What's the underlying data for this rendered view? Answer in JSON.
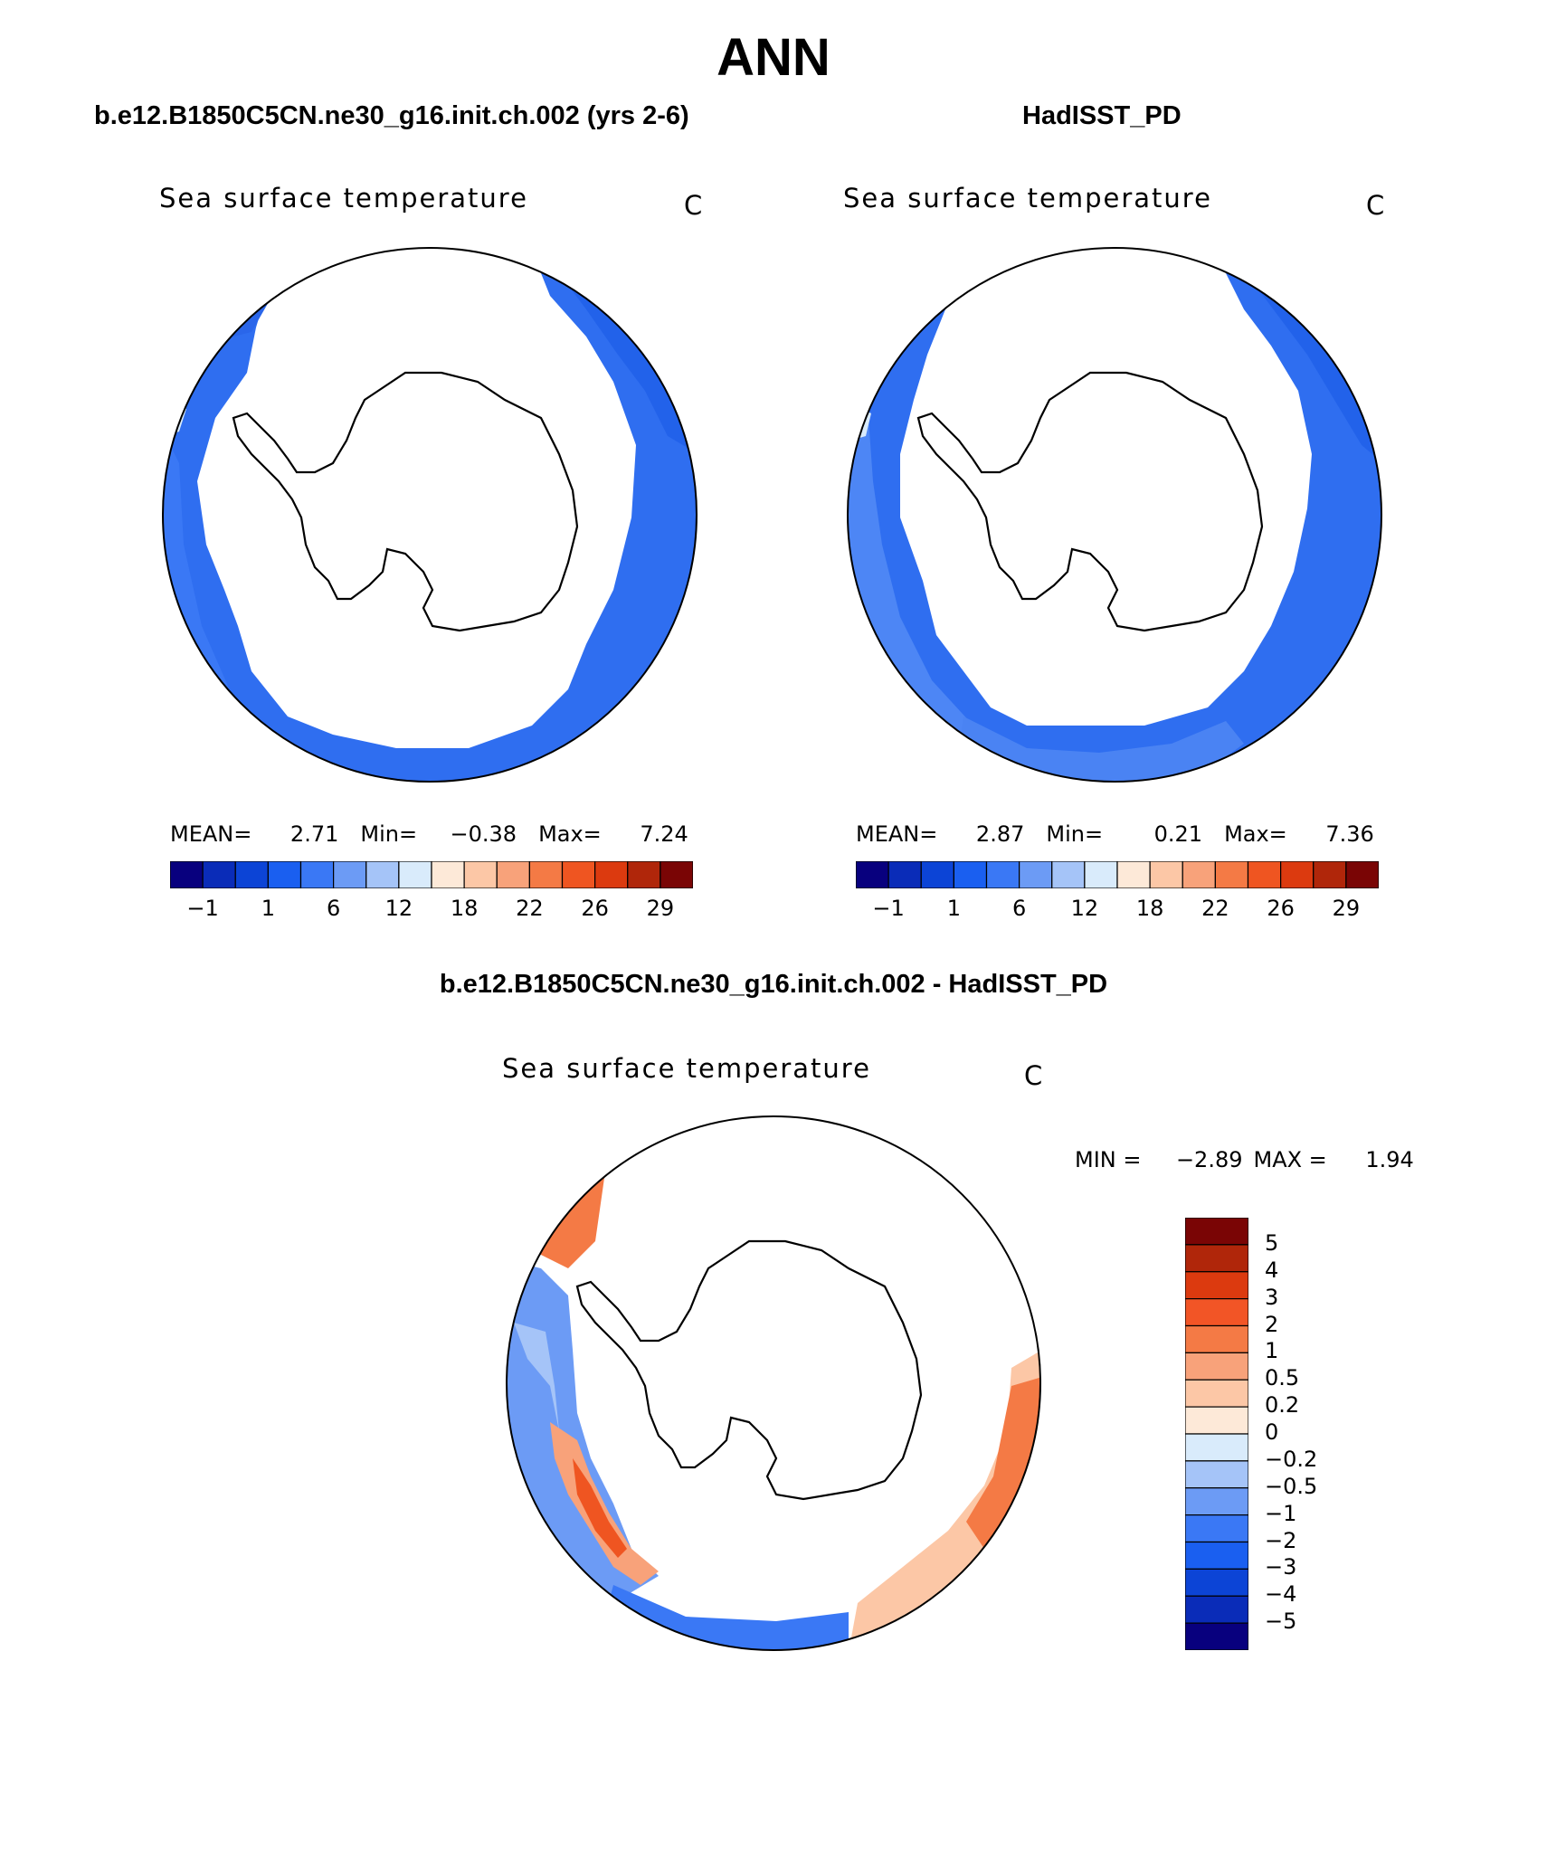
{
  "figure": {
    "title": "ANN",
    "panel_left_title": "b.e12.B1850C5CN.ne30_g16.init.ch.002 (yrs 2-6)",
    "panel_right_title": "HadISST_PD",
    "diff_title": "b.e12.B1850C5CN.ne30_g16.init.ch.002 - HadISST_PD"
  },
  "panels": {
    "left": {
      "variable": "Sea surface temperature",
      "units": "C",
      "mean_label": "MEAN=",
      "mean": "2.71",
      "min_label": "Min=",
      "min": "−0.38",
      "max_label": "Max=",
      "max": "7.24"
    },
    "right": {
      "variable": "Sea surface temperature",
      "units": "C",
      "mean_label": "MEAN=",
      "mean": "2.87",
      "min_label": "Min=",
      "min": "0.21",
      "max_label": "Max=",
      "max": "7.36"
    },
    "diff": {
      "variable": "Sea surface temperature",
      "units": "C",
      "min_label": "MIN =",
      "min": "−2.89",
      "max_label": "MAX =",
      "max": "1.94"
    }
  },
  "chart_data": {
    "type": "map",
    "projection": "south polar stereographic",
    "region": "Southern Ocean / Antarctica",
    "abs_colorbar": {
      "tick_labels": [
        "−1",
        "1",
        "6",
        "12",
        "18",
        "22",
        "26",
        "29"
      ],
      "colors": [
        "#08007e",
        "#0a2cb8",
        "#0c44d6",
        "#1a5ff0",
        "#3a78f5",
        "#6c9bf5",
        "#a5c4f8",
        "#d9ebfb",
        "#fde9d8",
        "#fcc7a6",
        "#f8a27a",
        "#f47a45",
        "#ef5521",
        "#dc3a0f",
        "#b0260a",
        "#7a0505"
      ]
    },
    "diff_colorbar": {
      "tick_labels": [
        "5",
        "4",
        "3",
        "2",
        "1",
        "0.5",
        "0.2",
        "0",
        "−0.2",
        "−0.5",
        "−1",
        "−2",
        "−3",
        "−4",
        "−5"
      ],
      "colors": [
        "#7a0505",
        "#b0260a",
        "#dc3a0f",
        "#f25526",
        "#f47a45",
        "#f8a27a",
        "#fcc7a6",
        "#fde9d8",
        "#d9ebfb",
        "#a5c4f8",
        "#6c9bf5",
        "#3a78f5",
        "#1a5ff0",
        "#0c44d6",
        "#0a2cb8",
        "#08007e"
      ]
    }
  }
}
